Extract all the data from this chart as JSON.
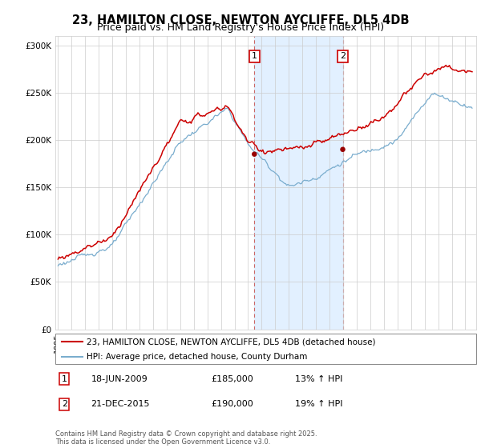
{
  "title": "23, HAMILTON CLOSE, NEWTON AYCLIFFE, DL5 4DB",
  "subtitle": "Price paid vs. HM Land Registry's House Price Index (HPI)",
  "ylabel_ticks": [
    "£0",
    "£50K",
    "£100K",
    "£150K",
    "£200K",
    "£250K",
    "£300K"
  ],
  "ytick_values": [
    0,
    50000,
    100000,
    150000,
    200000,
    250000,
    300000
  ],
  "ylim": [
    0,
    310000
  ],
  "xlim_start": 1994.8,
  "xlim_end": 2025.8,
  "sale1_date": 2009.46,
  "sale1_price": 185000,
  "sale2_date": 2015.97,
  "sale2_price": 190000,
  "legend_line1": "23, HAMILTON CLOSE, NEWTON AYCLIFFE, DL5 4DB (detached house)",
  "legend_line2": "HPI: Average price, detached house, County Durham",
  "footer": "Contains HM Land Registry data © Crown copyright and database right 2025.\nThis data is licensed under the Open Government Licence v3.0.",
  "hpi_color": "#7aadce",
  "price_color": "#cc0000",
  "shade_color": "#ddeeff",
  "marker_color": "#990000",
  "sale_box_color": "#cc0000",
  "dashed_line_color": "#cc6666",
  "background_color": "#ffffff",
  "grid_color": "#cccccc",
  "title_fontsize": 10.5,
  "subtitle_fontsize": 9,
  "tick_fontsize": 7.5,
  "legend_fontsize": 7.5,
  "footer_fontsize": 6,
  "annotation_fontsize": 8
}
